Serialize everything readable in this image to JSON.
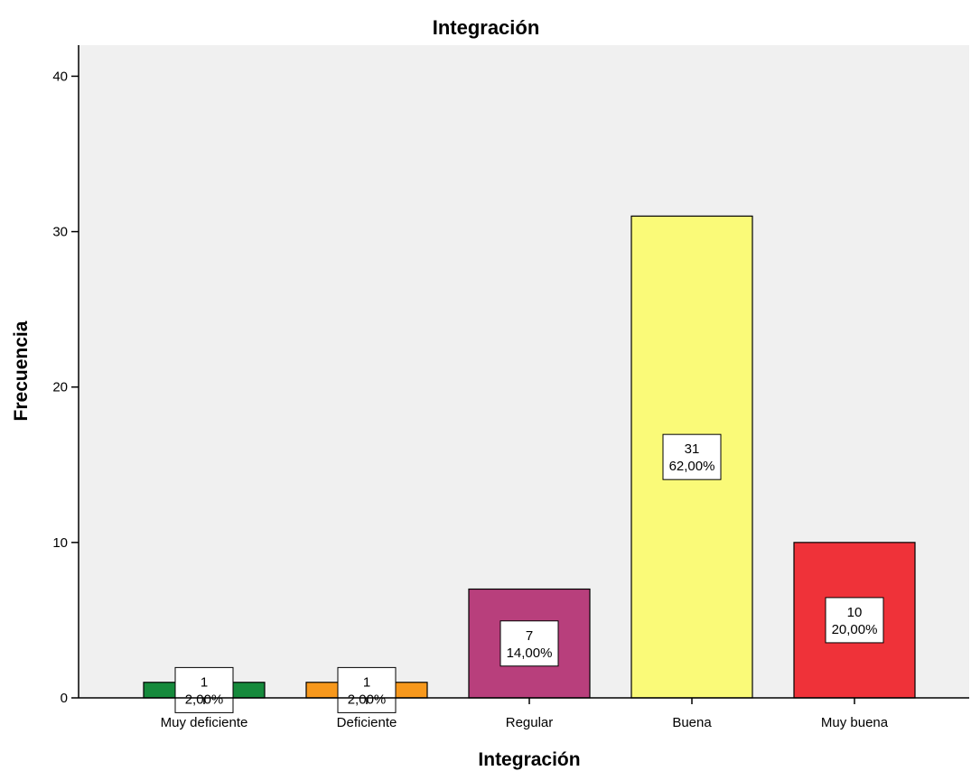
{
  "chart_data": {
    "type": "bar",
    "title": "Integración",
    "xlabel": "Integración",
    "ylabel": "Frecuencia",
    "ylim": [
      0,
      42
    ],
    "yticks": [
      0,
      10,
      20,
      30,
      40
    ],
    "categories": [
      "Muy deficiente",
      "Deficiente",
      "Regular",
      "Buena",
      "Muy buena"
    ],
    "values": [
      1,
      1,
      7,
      31,
      10
    ],
    "data_labels": [
      {
        "count": "1",
        "percent": "2,00%"
      },
      {
        "count": "1",
        "percent": "2,00%"
      },
      {
        "count": "7",
        "percent": "14,00%"
      },
      {
        "count": "31",
        "percent": "62,00%"
      },
      {
        "count": "10",
        "percent": "20,00%"
      }
    ],
    "colors": [
      "#168a3c",
      "#f7981c",
      "#b83f7c",
      "#fafa78",
      "#ef3239"
    ],
    "plot_background": "#f0f0f0",
    "grid": false,
    "legend": "none"
  }
}
